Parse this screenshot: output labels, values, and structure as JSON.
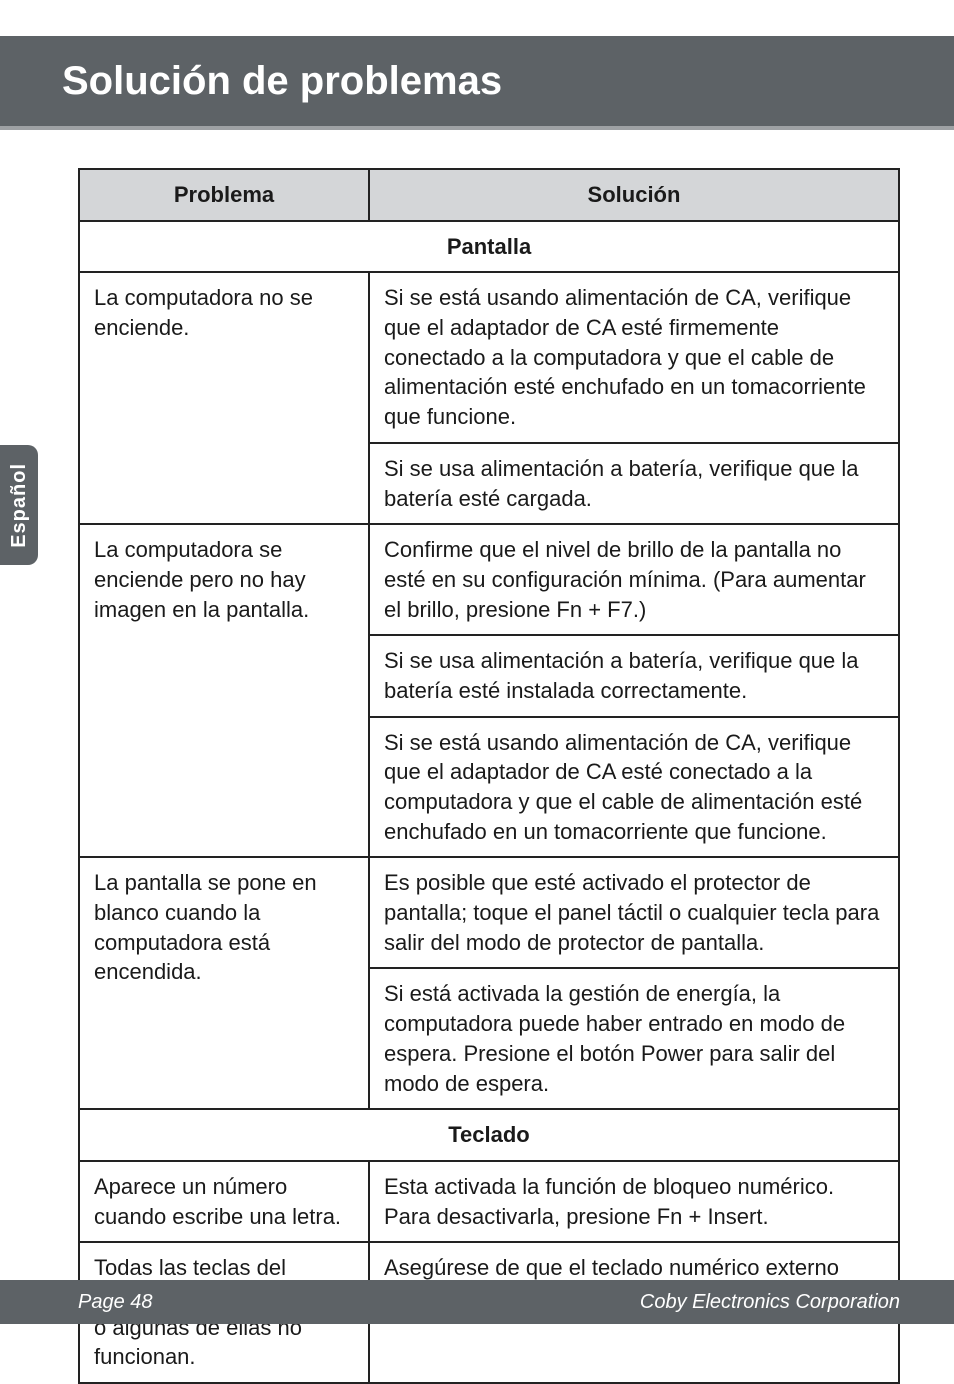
{
  "header": {
    "title": "Solución de problemas"
  },
  "sideTab": {
    "label": "Español"
  },
  "table": {
    "headers": {
      "problem": "Problema",
      "solution": "Solución"
    },
    "sections": [
      {
        "title": "Pantalla",
        "rows": [
          {
            "problem": "La computadora no se enciende.",
            "solutions": [
              "Si se está usando alimentación de CA, verifique que el adaptador de CA esté firmemente conectado a la computadora y que el cable de alimentación esté enchufado en un tomacorriente que funcione.",
              "Si se usa alimentación a batería, verifique que la batería esté cargada."
            ]
          },
          {
            "problem": "La computadora se enciende pero no hay imagen en la pantalla.",
            "solutions": [
              "Confirme que el nivel de brillo de la pantalla no esté en su configuración mínima. (Para aumentar el brillo, presione Fn + F7.)",
              "Si se usa alimentación a batería, verifique que la batería esté instalada correctamente.",
              "Si se está usando alimentación de CA, verifique que el adaptador de CA esté conectado a la computadora y que el cable de alimentación esté enchufado en un tomacorriente que funcione."
            ]
          },
          {
            "problem": "La pantalla se pone en blanco cuando la computadora está encendida.",
            "solutions": [
              "Es posible que esté activado el protector de pantalla; toque el panel táctil o cualquier tecla para salir del modo de protector de pantalla.",
              "Si está activada la gestión de energía, la computadora puede haber entrado en modo de espera. Presione el botón Power para salir del modo de espera."
            ]
          }
        ]
      },
      {
        "title": "Teclado",
        "rows": [
          {
            "problem": "Aparece un número cuando escribe una letra.",
            "solutions": [
              "Esta activada la función de bloqueo numérico. Para desactivarla, presione Fn + Insert."
            ]
          },
          {
            "problem": "Todas las teclas del teclado numérico externo o algunas de ellas no funcionan.",
            "solutions": [
              "Asegúrese de que el teclado numérico externo esté firmemente conectado a la computadora."
            ]
          }
        ]
      }
    ]
  },
  "footer": {
    "page": "Page 48",
    "company": "Coby Electronics Corporation"
  }
}
